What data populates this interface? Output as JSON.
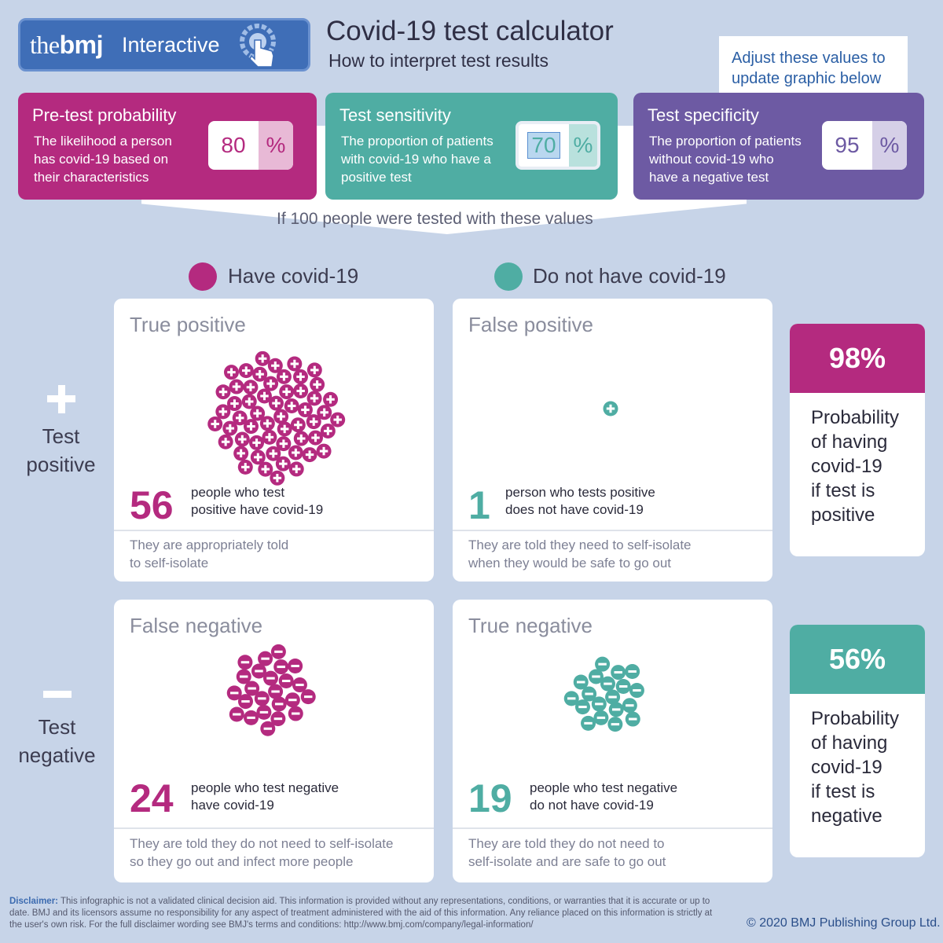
{
  "header": {
    "logo_the": "the",
    "logo_bmj": "bmj",
    "logo_sub": "Interactive",
    "title": "Covid-19 test calculator",
    "subtitle": "How to interpret test results",
    "callout": "Adjust these values to update graphic below"
  },
  "inputs": [
    {
      "title": "Pre-test probability",
      "desc": "The likelihood a person has covid-19 based on their characteristics",
      "value": "80",
      "unit": "%",
      "color": "#b42a7f"
    },
    {
      "title": "Test sensitivity",
      "desc": "The proportion of patients with covid-19 who have a positive test",
      "value": "70",
      "unit": "%",
      "color": "#4fada3"
    },
    {
      "title": "Test specificity",
      "desc": "The proportion of patients without covid-19 who have a negative test",
      "value": "95",
      "unit": "%",
      "color": "#6d5aa3"
    }
  ],
  "tested_note": "If 100 people were tested with these values",
  "legend": {
    "have": "Have covid-19",
    "not_have": "Do not have covid-19",
    "have_color": "#b42a7f",
    "not_have_color": "#4fada3"
  },
  "rows": {
    "positive": {
      "sign": "+",
      "label1": "Test",
      "label2": "positive"
    },
    "negative": {
      "sign": "–",
      "label1": "Test",
      "label2": "negative"
    }
  },
  "quadrants": {
    "tp": {
      "heading": "True positive",
      "count": "56",
      "count_value": 56,
      "desc1": "people who test",
      "desc2": "positive have covid-19",
      "note1": "They are appropriately told",
      "note2": "to self-isolate"
    },
    "fp": {
      "heading": "False positive",
      "count": "1",
      "count_value": 1,
      "desc1": "person who tests positive",
      "desc2": "does not have covid-19",
      "note1": "They are told they need to self-isolate",
      "note2": "when they would be safe to go out"
    },
    "fn": {
      "heading": "False negative",
      "count": "24",
      "count_value": 24,
      "desc1": "people who test negative",
      "desc2": "have covid-19",
      "note1": "They are told they do not need to self-isolate",
      "note2": "so they go out and infect more people"
    },
    "tn": {
      "heading": "True negative",
      "count": "19",
      "count_value": 19,
      "desc1": "people who test negative",
      "desc2": "do not have covid-19",
      "note1": "They are told they do not need to",
      "note2": "self-isolate and are safe to go out"
    }
  },
  "results": {
    "positive": {
      "value": "98%",
      "color": "#b42a7f",
      "lines": [
        "Probability",
        "of having",
        "covid-19",
        "if test is",
        "positive"
      ]
    },
    "negative": {
      "value": "56%",
      "color": "#4fada3",
      "lines": [
        "Probability",
        "of having",
        "covid-19",
        "if test is",
        "negative"
      ]
    }
  },
  "disclaimer": {
    "label": "Disclaimer:",
    "text": "This infographic is not a validated clinical decision aid. This information is provided without any representations, conditions, or warranties that it is accurate or up to date. BMJ and its licensors assume no responsibility for any aspect of treatment administered with the aid of this information. Any reliance placed on this information is strictly at the user's own risk. For the full disclaimer wording see BMJ's terms and conditions: http://www.bmj.com/company/legal-information/"
  },
  "copyright": "© 2020 BMJ Publishing Group Ltd."
}
